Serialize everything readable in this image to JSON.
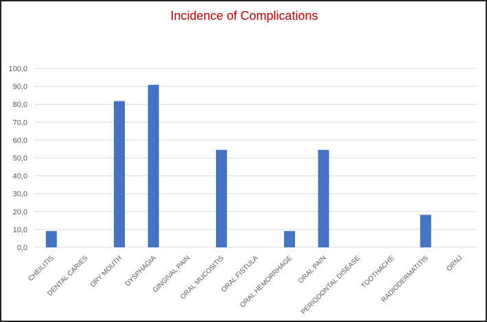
{
  "chart_data": {
    "type": "bar",
    "title": "Incidence of Complications",
    "xlabel": "",
    "ylabel": "",
    "ylim": [
      0,
      100
    ],
    "yticks": [
      "0,0",
      "10,0",
      "20,0",
      "30,0",
      "40,0",
      "50,0",
      "60,0",
      "70,0",
      "80,0",
      "90,0",
      "100,0"
    ],
    "grid": true,
    "categories": [
      "CHEILITIS",
      "DENTAL CARIES",
      "DRY MOUTH",
      "DYSPHAGIA",
      "GINGIVAL PAIN",
      "ORAL MUCOSITIS",
      "ORAL FISTULA",
      "ORAL HEMORRHAGE",
      "ORAL PAIN",
      "PERIODONTAL DISEASE",
      "TOOTHACHE",
      "RADIODERMATITIS",
      "ORNJ"
    ],
    "values": [
      9.1,
      0,
      81.8,
      90.9,
      0,
      54.5,
      0,
      9.1,
      54.5,
      0,
      0,
      18.2,
      0
    ],
    "colors": {
      "bar": "#4472c4",
      "title": "#c00000",
      "grid": "#d9d9d9",
      "text": "#595959"
    }
  }
}
